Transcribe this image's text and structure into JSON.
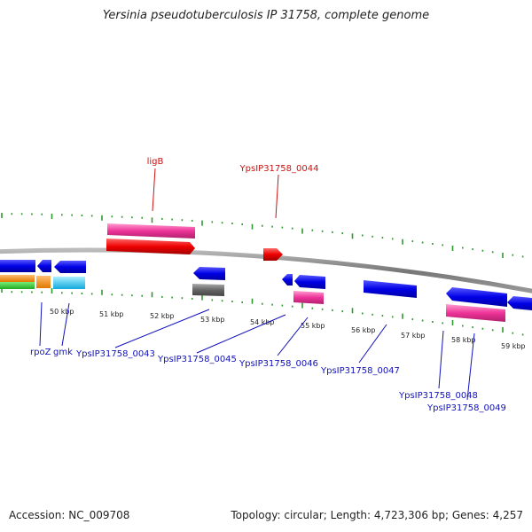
{
  "title": "Yersinia pseudotuberculosis IP 31758, complete genome",
  "footer": {
    "accession": "Accession: NC_009708",
    "stats": "Topology: circular; Length: 4,723,306 bp; Genes: 4,257"
  },
  "colors": {
    "backbone": "#8c8c8c",
    "tick": "#2e9a2e",
    "forward_label": "#cc1111",
    "reverse_label": "#1111bb"
  },
  "scale": {
    "labels": [
      "50 kbp",
      "51 kbp",
      "52 kbp",
      "53 kbp",
      "54 kbp",
      "55 kbp",
      "56 kbp",
      "57 kbp",
      "58 kbp",
      "59 kbp"
    ]
  },
  "genes": {
    "forward": [
      {
        "id": "ligB",
        "label": "ligB",
        "color": "#dd1111",
        "feature_color": "#ee4499"
      },
      {
        "id": "YpsIP31758_0044",
        "label": "YpsIP31758_0044",
        "color": "#dd1111"
      }
    ],
    "reverse": [
      {
        "id": "rpoZ",
        "label": "rpoZ"
      },
      {
        "id": "gmk",
        "label": "gmk"
      },
      {
        "id": "YpsIP31758_0043",
        "label": "YpsIP31758_0043",
        "feature_color": "#666666"
      },
      {
        "id": "YpsIP31758_0045",
        "label": "YpsIP31758_0045"
      },
      {
        "id": "YpsIP31758_0046",
        "label": "YpsIP31758_0046",
        "feature_color": "#ee4499"
      },
      {
        "id": "YpsIP31758_0047",
        "label": "YpsIP31758_0047"
      },
      {
        "id": "YpsIP31758_0048",
        "label": "YpsIP31758_0048",
        "feature_color": "#ee4499"
      },
      {
        "id": "YpsIP31758_0049",
        "label": "YpsIP31758_0049"
      }
    ]
  }
}
